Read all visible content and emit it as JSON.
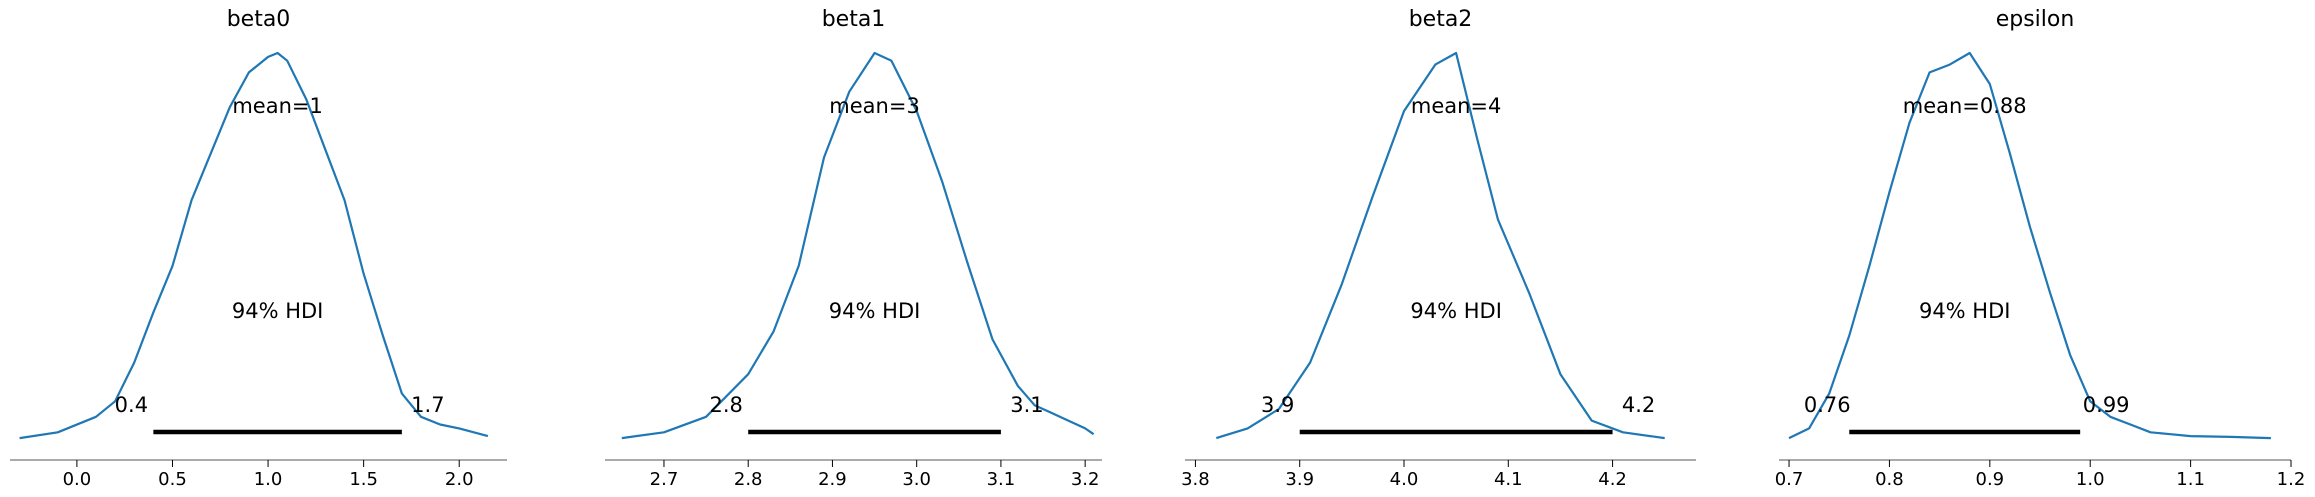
{
  "figure": {
    "background": "#ffffff",
    "kde_color": "#1f77b4",
    "hdi_color": "#000000",
    "axis_color": "#555555"
  },
  "chart_data": [
    {
      "type": "line",
      "title": "beta0",
      "mean_label": "mean=1",
      "hdi_label": "94% HDI",
      "hdi": [
        0.4,
        1.7
      ],
      "hdi_lower_label": "0.4",
      "hdi_upper_label": "1.7",
      "xlim": [
        -0.35,
        2.25
      ],
      "xticks": [
        0.0,
        0.5,
        1.0,
        1.5,
        2.0
      ],
      "xtick_labels": [
        "0.0",
        "0.5",
        "1.0",
        "1.5",
        "2.0"
      ],
      "x": [
        -0.3,
        -0.1,
        0.1,
        0.2,
        0.3,
        0.4,
        0.5,
        0.6,
        0.7,
        0.8,
        0.9,
        1.0,
        1.05,
        1.1,
        1.2,
        1.3,
        1.4,
        1.5,
        1.6,
        1.7,
        1.8,
        1.9,
        2.0,
        2.15
      ],
      "y": [
        0.005,
        0.02,
        0.06,
        0.1,
        0.2,
        0.33,
        0.45,
        0.62,
        0.74,
        0.86,
        0.95,
        0.99,
        1.0,
        0.98,
        0.88,
        0.75,
        0.62,
        0.43,
        0.27,
        0.12,
        0.06,
        0.04,
        0.03,
        0.01
      ],
      "ylim": [
        0,
        1
      ]
    },
    {
      "type": "line",
      "title": "beta1",
      "mean_label": "mean=3",
      "hdi_label": "94% HDI",
      "hdi": [
        2.8,
        3.1
      ],
      "hdi_lower_label": "2.8",
      "hdi_upper_label": "3.1",
      "xlim": [
        2.63,
        3.22
      ],
      "xticks": [
        2.7,
        2.8,
        2.9,
        3.0,
        3.1,
        3.2
      ],
      "xtick_labels": [
        "2.7",
        "2.8",
        "2.9",
        "3.0",
        "3.1",
        "3.2"
      ],
      "x": [
        2.65,
        2.7,
        2.75,
        2.8,
        2.83,
        2.86,
        2.89,
        2.92,
        2.95,
        2.97,
        3.0,
        3.03,
        3.06,
        3.09,
        3.12,
        3.14,
        3.16,
        3.18,
        3.2,
        3.21
      ],
      "y": [
        0.005,
        0.02,
        0.06,
        0.17,
        0.28,
        0.45,
        0.73,
        0.9,
        1.0,
        0.98,
        0.85,
        0.67,
        0.46,
        0.26,
        0.14,
        0.09,
        0.07,
        0.05,
        0.03,
        0.015
      ],
      "ylim": [
        0,
        1
      ]
    },
    {
      "type": "line",
      "title": "beta2",
      "mean_label": "mean=4",
      "hdi_label": "94% HDI",
      "hdi": [
        3.9,
        4.2
      ],
      "hdi_lower_label": "3.9",
      "hdi_upper_label": "4.2",
      "xlim": [
        3.79,
        4.28
      ],
      "xticks": [
        3.8,
        3.9,
        4.0,
        4.1,
        4.2
      ],
      "xtick_labels": [
        "3.8",
        "3.9",
        "4.0",
        "4.1",
        "4.2"
      ],
      "x": [
        3.82,
        3.85,
        3.88,
        3.91,
        3.94,
        3.97,
        4.0,
        4.03,
        4.05,
        4.07,
        4.09,
        4.12,
        4.15,
        4.18,
        4.21,
        4.25
      ],
      "y": [
        0.005,
        0.03,
        0.08,
        0.2,
        0.4,
        0.63,
        0.85,
        0.97,
        1.0,
        0.78,
        0.57,
        0.38,
        0.17,
        0.05,
        0.02,
        0.005
      ],
      "ylim": [
        0,
        1
      ]
    },
    {
      "type": "line",
      "title": "epsilon",
      "mean_label": "mean=0.88",
      "hdi_label": "94% HDI",
      "hdi": [
        0.76,
        0.99
      ],
      "hdi_lower_label": "0.76",
      "hdi_upper_label": "0.99",
      "xlim": [
        0.69,
        1.2
      ],
      "xticks": [
        0.7,
        0.8,
        0.9,
        1.0,
        1.1,
        1.2
      ],
      "xtick_labels": [
        "0.7",
        "0.8",
        "0.9",
        "1.0",
        "1.1",
        "1.2"
      ],
      "x": [
        0.7,
        0.72,
        0.74,
        0.76,
        0.78,
        0.8,
        0.82,
        0.84,
        0.86,
        0.88,
        0.9,
        0.92,
        0.94,
        0.96,
        0.98,
        1.0,
        1.02,
        1.04,
        1.06,
        1.08,
        1.1,
        1.14,
        1.18
      ],
      "y": [
        0.005,
        0.03,
        0.12,
        0.27,
        0.45,
        0.64,
        0.82,
        0.95,
        0.97,
        1.0,
        0.92,
        0.74,
        0.55,
        0.38,
        0.22,
        0.1,
        0.06,
        0.04,
        0.02,
        0.015,
        0.01,
        0.008,
        0.005
      ],
      "ylim": [
        0,
        1
      ]
    }
  ]
}
